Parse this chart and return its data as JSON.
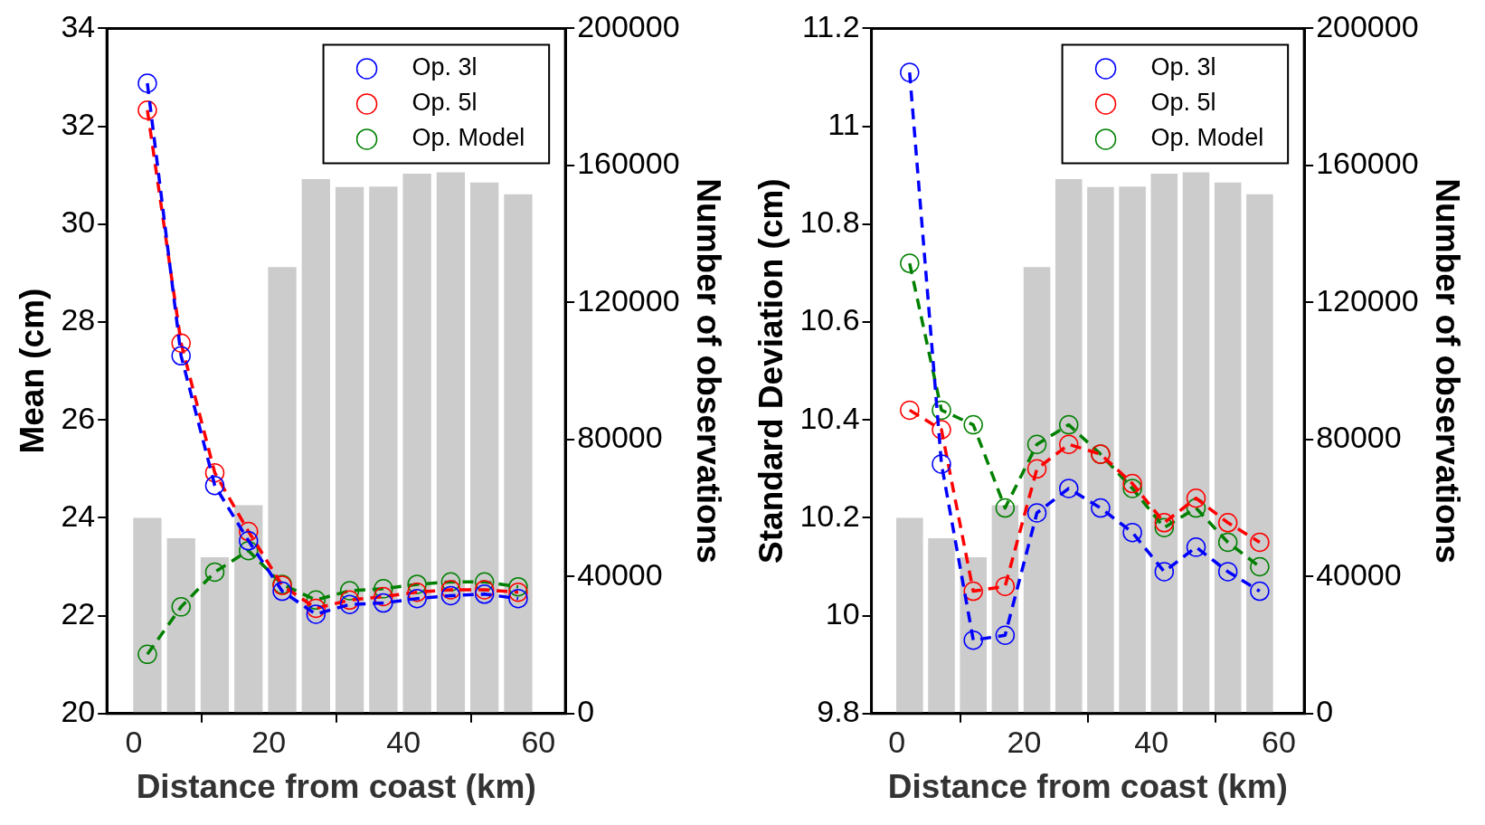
{
  "chart_data": [
    {
      "type": "line",
      "xlabel": "Distance from coast (km)",
      "ylabel": "Mean (cm)",
      "y2label": "Number of observations",
      "x": [
        2,
        7,
        12,
        17,
        22,
        27,
        32,
        37,
        42,
        47,
        52,
        57
      ],
      "xlim": [
        -4,
        64
      ],
      "xticks": [
        0,
        20,
        40,
        60
      ],
      "ylim": [
        20,
        34
      ],
      "yticks": [
        20,
        22,
        24,
        26,
        28,
        30,
        32,
        34
      ],
      "y2lim": [
        0,
        200000
      ],
      "y2ticks": [
        0,
        40000,
        80000,
        120000,
        160000,
        200000
      ],
      "grid": false,
      "legend": "top right",
      "marker": "circle",
      "line_style": "dashed",
      "series": [
        {
          "type": "bar",
          "axis": "y2",
          "color": "#cccccc",
          "values": [
            57100,
            51200,
            45600,
            60800,
            130300,
            156000,
            153700,
            153800,
            157600,
            158000,
            155000,
            151600
          ]
        },
        {
          "name": "Op. 3l",
          "color": "#0000ff",
          "values": [
            32.88,
            27.31,
            24.66,
            23.53,
            22.5,
            22.03,
            22.23,
            22.26,
            22.35,
            22.41,
            22.44,
            22.35
          ]
        },
        {
          "name": "Op. 5l",
          "color": "#ff0000",
          "values": [
            32.33,
            27.57,
            24.92,
            23.72,
            22.62,
            22.15,
            22.32,
            22.39,
            22.48,
            22.53,
            22.53,
            22.48
          ]
        },
        {
          "name": "Op. Model",
          "color": "#008000",
          "values": [
            21.21,
            22.18,
            22.89,
            23.33,
            22.64,
            22.32,
            22.51,
            22.55,
            22.64,
            22.69,
            22.69,
            22.59
          ]
        }
      ]
    },
    {
      "type": "line",
      "xlabel": "Distance from coast (km)",
      "ylabel": "Standard Deviation (cm)",
      "y2label": "Number of observations",
      "x": [
        2,
        7,
        12,
        17,
        22,
        27,
        32,
        37,
        42,
        47,
        52,
        57
      ],
      "xlim": [
        -4,
        64
      ],
      "xticks": [
        0,
        20,
        40,
        60
      ],
      "ylim": [
        9.8,
        11.2
      ],
      "yticks": [
        9.8,
        10,
        10.2,
        10.4,
        10.6,
        10.8,
        11,
        11.2
      ],
      "y2lim": [
        0,
        200000
      ],
      "y2ticks": [
        0,
        40000,
        80000,
        120000,
        160000,
        200000
      ],
      "grid": false,
      "legend": "top right",
      "marker": "circle",
      "line_style": "dashed",
      "series": [
        {
          "type": "bar",
          "axis": "y2",
          "color": "#cccccc",
          "values": [
            57100,
            51200,
            45600,
            60800,
            130300,
            156000,
            153700,
            153800,
            157600,
            158000,
            155000,
            151600
          ]
        },
        {
          "name": "Op. 3l",
          "color": "#0000ff",
          "values": [
            11.11,
            10.31,
            9.95,
            9.96,
            10.21,
            10.26,
            10.22,
            10.17,
            10.09,
            10.14,
            10.09,
            10.05
          ]
        },
        {
          "name": "Op. 5l",
          "color": "#ff0000",
          "values": [
            10.42,
            10.38,
            10.05,
            10.06,
            10.3,
            10.35,
            10.33,
            10.27,
            10.19,
            10.24,
            10.19,
            10.15
          ]
        },
        {
          "name": "Op. Model",
          "color": "#008000",
          "values": [
            10.72,
            10.42,
            10.39,
            10.22,
            10.35,
            10.39,
            10.33,
            10.26,
            10.18,
            10.22,
            10.15,
            10.1
          ]
        }
      ]
    }
  ]
}
